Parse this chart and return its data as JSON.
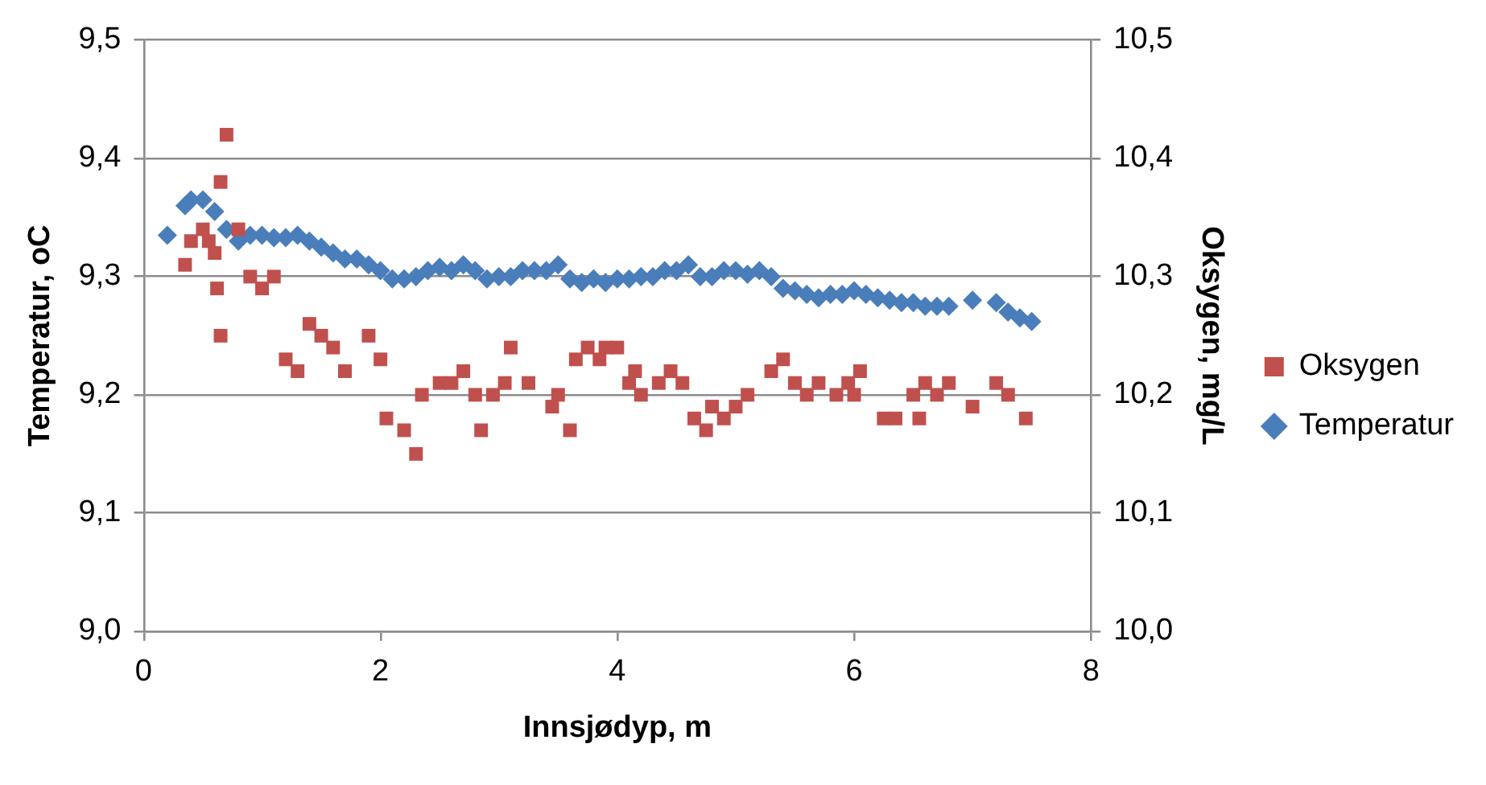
{
  "chart_data": {
    "type": "scatter",
    "xlabel": "Innsjødyp, m",
    "ylabel": "Temperatur, oC",
    "y2label": "Oksygen, mg/L",
    "xlim": [
      0,
      8
    ],
    "xticks": [
      0,
      2,
      4,
      6,
      8
    ],
    "ylim": [
      9.0,
      9.5
    ],
    "yticks": [
      {
        "value": 9.0,
        "label": "9,0"
      },
      {
        "value": 9.1,
        "label": "9,1"
      },
      {
        "value": 9.2,
        "label": "9,2"
      },
      {
        "value": 9.3,
        "label": "9,3"
      },
      {
        "value": 9.4,
        "label": "9,4"
      },
      {
        "value": 9.5,
        "label": "9,5"
      }
    ],
    "y2lim": [
      10.0,
      10.5
    ],
    "y2ticks": [
      {
        "value": 10.0,
        "label": "10,0"
      },
      {
        "value": 10.1,
        "label": "10,1"
      },
      {
        "value": 10.2,
        "label": "10,2"
      },
      {
        "value": 10.3,
        "label": "10,3"
      },
      {
        "value": 10.4,
        "label": "10,4"
      },
      {
        "value": 10.5,
        "label": "10,5"
      }
    ],
    "grid": "y",
    "legend": "right",
    "series": [
      {
        "name": "Temperatur",
        "color": "#4a7ebb",
        "marker": "diamond",
        "x": [
          0.2,
          0.35,
          0.4,
          0.5,
          0.6,
          0.7,
          0.8,
          0.9,
          1.0,
          1.1,
          1.2,
          1.3,
          1.4,
          1.5,
          1.6,
          1.7,
          1.8,
          1.9,
          2.0,
          2.1,
          2.2,
          2.3,
          2.4,
          2.5,
          2.6,
          2.7,
          2.8,
          2.9,
          3.0,
          3.1,
          3.2,
          3.3,
          3.4,
          3.5,
          3.6,
          3.7,
          3.8,
          3.9,
          4.0,
          4.1,
          4.2,
          4.3,
          4.4,
          4.5,
          4.6,
          4.7,
          4.8,
          4.9,
          5.0,
          5.1,
          5.2,
          5.3,
          5.4,
          5.5,
          5.6,
          5.7,
          5.8,
          5.9,
          6.0,
          6.1,
          6.2,
          6.3,
          6.4,
          6.5,
          6.6,
          6.7,
          6.8,
          7.0,
          7.2,
          7.3,
          7.4,
          7.5
        ],
        "values": [
          9.335,
          9.36,
          9.365,
          9.365,
          9.355,
          9.34,
          9.33,
          9.335,
          9.335,
          9.333,
          9.333,
          9.335,
          9.33,
          9.325,
          9.32,
          9.315,
          9.315,
          9.31,
          9.305,
          9.298,
          9.298,
          9.3,
          9.305,
          9.308,
          9.305,
          9.31,
          9.305,
          9.298,
          9.3,
          9.3,
          9.305,
          9.305,
          9.305,
          9.31,
          9.298,
          9.295,
          9.298,
          9.295,
          9.298,
          9.298,
          9.3,
          9.3,
          9.305,
          9.305,
          9.31,
          9.3,
          9.3,
          9.305,
          9.305,
          9.302,
          9.305,
          9.3,
          9.29,
          9.288,
          9.285,
          9.282,
          9.285,
          9.285,
          9.288,
          9.285,
          9.282,
          9.28,
          9.278,
          9.278,
          9.275,
          9.275,
          9.275,
          9.28,
          9.278,
          9.27,
          9.265,
          9.262
        ]
      },
      {
        "name": "Oksygen",
        "color": "#c0504d",
        "marker": "square",
        "axis": "y2",
        "x": [
          0.35,
          0.4,
          0.5,
          0.55,
          0.6,
          0.62,
          0.65,
          0.65,
          0.7,
          0.8,
          0.9,
          1.0,
          1.1,
          1.2,
          1.3,
          1.4,
          1.5,
          1.6,
          1.7,
          1.9,
          2.0,
          2.05,
          2.2,
          2.3,
          2.35,
          2.5,
          2.6,
          2.7,
          2.8,
          2.85,
          2.95,
          3.05,
          3.1,
          3.25,
          3.45,
          3.5,
          3.6,
          3.65,
          3.75,
          3.85,
          3.9,
          4.0,
          4.1,
          4.15,
          4.2,
          4.35,
          4.45,
          4.55,
          4.65,
          4.75,
          4.8,
          4.9,
          5.0,
          5.1,
          5.3,
          5.4,
          5.5,
          5.6,
          5.7,
          5.85,
          5.95,
          6.0,
          6.05,
          6.25,
          6.35,
          6.5,
          6.55,
          6.6,
          6.7,
          6.8,
          7.0,
          7.2,
          7.3,
          7.45
        ],
        "values": [
          10.31,
          10.33,
          10.34,
          10.33,
          10.32,
          10.29,
          10.38,
          10.25,
          10.42,
          10.34,
          10.3,
          10.29,
          10.3,
          10.23,
          10.22,
          10.26,
          10.25,
          10.24,
          10.22,
          10.25,
          10.23,
          10.18,
          10.17,
          10.15,
          10.2,
          10.21,
          10.21,
          10.22,
          10.2,
          10.17,
          10.2,
          10.21,
          10.24,
          10.21,
          10.19,
          10.2,
          10.17,
          10.23,
          10.24,
          10.23,
          10.24,
          10.24,
          10.21,
          10.22,
          10.2,
          10.21,
          10.22,
          10.21,
          10.18,
          10.17,
          10.19,
          10.18,
          10.19,
          10.2,
          10.22,
          10.23,
          10.21,
          10.2,
          10.21,
          10.2,
          10.21,
          10.2,
          10.22,
          10.18,
          10.18,
          10.2,
          10.18,
          10.21,
          10.2,
          10.21,
          10.19,
          10.21,
          10.2,
          10.18
        ]
      }
    ]
  }
}
